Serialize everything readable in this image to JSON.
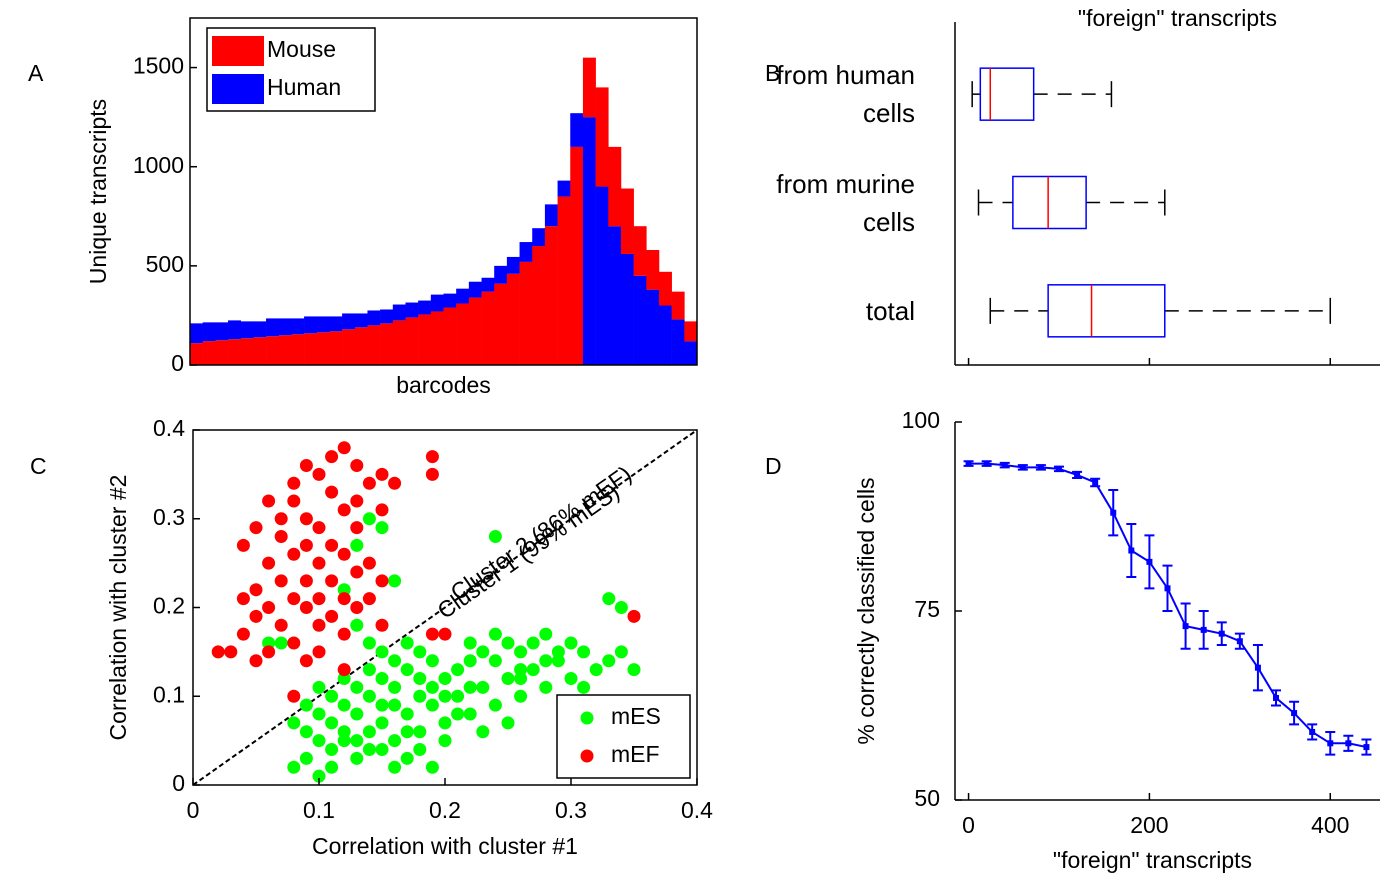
{
  "chart_data": [
    {
      "type": "bar",
      "panel_label": "A",
      "xlabel": "barcodes",
      "ylabel": "Unique transcripts",
      "categories": [
        null,
        null,
        null,
        null,
        null,
        null,
        null,
        null,
        null,
        null,
        null,
        null,
        null,
        null,
        null,
        null,
        null,
        null,
        null,
        null,
        null,
        null,
        null,
        null,
        null,
        null,
        null,
        null,
        null,
        null,
        null,
        null,
        null,
        null,
        null,
        null,
        null,
        null,
        null,
        null
      ],
      "series": [
        {
          "name": "Mouse",
          "color": "#ff0000",
          "values": [
            110,
            120,
            125,
            130,
            135,
            140,
            145,
            150,
            155,
            160,
            165,
            170,
            180,
            190,
            200,
            210,
            225,
            240,
            255,
            270,
            290,
            310,
            340,
            370,
            410,
            460,
            520,
            600,
            700,
            850,
            1100,
            300,
            500,
            400,
            330,
            250,
            200,
            170,
            140,
            100
          ]
        },
        {
          "name": "Human",
          "color": "#0000ff",
          "values": [
            100,
            95,
            90,
            95,
            85,
            80,
            90,
            85,
            80,
            85,
            80,
            75,
            80,
            70,
            75,
            70,
            80,
            75,
            70,
            85,
            70,
            75,
            80,
            70,
            90,
            85,
            100,
            90,
            110,
            80,
            170,
            1250,
            900,
            700,
            560,
            450,
            380,
            300,
            230,
            120
          ]
        }
      ],
      "ylim": [
        0,
        1750
      ],
      "yticks": [
        0,
        500,
        1000,
        1500
      ],
      "legend": "upper left",
      "frame": "box"
    },
    {
      "type": "box",
      "panel_label": "B",
      "title": "\"foreign\" transcripts",
      "categories": [
        "from human cells",
        "from murine cells",
        "total"
      ],
      "whisker_low": [
        4,
        11,
        24
      ],
      "q1": [
        13,
        49,
        88
      ],
      "median": [
        24,
        88,
        136
      ],
      "q3": [
        72,
        130,
        217
      ],
      "whisker_high": [
        158,
        217,
        400
      ],
      "box_color": "#0000ff",
      "median_color": "#ff0000",
      "xlim": [
        -15,
        455
      ],
      "xticks": [
        0,
        200,
        400
      ],
      "xtick_labels": false,
      "frame": "axes"
    },
    {
      "type": "scatter",
      "panel_label": "C",
      "xlabel": "Correlation with cluster #1",
      "ylabel": "Correlation with cluster #2",
      "series": [
        {
          "name": "mES",
          "color": "#00ff00",
          "x": [
            0.08,
            0.09,
            0.1,
            0.11,
            0.12,
            0.13,
            0.14,
            0.15,
            0.16,
            0.17,
            0.18,
            0.19,
            0.09,
            0.1,
            0.11,
            0.12,
            0.13,
            0.14,
            0.15,
            0.16,
            0.17,
            0.18,
            0.19,
            0.2,
            0.21,
            0.22,
            0.23,
            0.24,
            0.25,
            0.26,
            0.27,
            0.28,
            0.29,
            0.3,
            0.31,
            0.32,
            0.33,
            0.34,
            0.35,
            0.12,
            0.13,
            0.14,
            0.15,
            0.16,
            0.17,
            0.18,
            0.19,
            0.2,
            0.21,
            0.22,
            0.23,
            0.24,
            0.25,
            0.26,
            0.27,
            0.28,
            0.29,
            0.22,
            0.2,
            0.16,
            0.17,
            0.11,
            0.1,
            0.09,
            0.08,
            0.15,
            0.14,
            0.13,
            0.12,
            0.13,
            0.14,
            0.15,
            0.16,
            0.24,
            0.33,
            0.34,
            0.18,
            0.21,
            0.23,
            0.25,
            0.2,
            0.18,
            0.16,
            0.14,
            0.07,
            0.06,
            0.26,
            0.28,
            0.3,
            0.31,
            0.19,
            0.17,
            0.11,
            0.1,
            0.22,
            0.24,
            0.12,
            0.13,
            0.15,
            0.26
          ],
          "y": [
            0.02,
            0.03,
            0.01,
            0.04,
            0.05,
            0.03,
            0.06,
            0.04,
            0.05,
            0.03,
            0.06,
            0.02,
            0.06,
            0.08,
            0.07,
            0.09,
            0.08,
            0.1,
            0.07,
            0.09,
            0.08,
            0.1,
            0.09,
            0.07,
            0.1,
            0.08,
            0.11,
            0.09,
            0.12,
            0.1,
            0.13,
            0.11,
            0.14,
            0.12,
            0.11,
            0.13,
            0.14,
            0.15,
            0.13,
            0.12,
            0.11,
            0.13,
            0.12,
            0.11,
            0.13,
            0.12,
            0.14,
            0.12,
            0.13,
            0.14,
            0.15,
            0.14,
            0.16,
            0.15,
            0.16,
            0.17,
            0.15,
            0.11,
            0.1,
            0.14,
            0.16,
            0.1,
            0.11,
            0.09,
            0.07,
            0.15,
            0.16,
            0.18,
            0.22,
            0.27,
            0.3,
            0.29,
            0.23,
            0.28,
            0.21,
            0.2,
            0.15,
            0.08,
            0.06,
            0.07,
            0.05,
            0.04,
            0.02,
            0.04,
            0.16,
            0.16,
            0.12,
            0.14,
            0.16,
            0.15,
            0.11,
            0.06,
            0.02,
            0.05,
            0.16,
            0.17,
            0.06,
            0.05,
            0.09,
            0.13
          ]
        },
        {
          "name": "mEF",
          "color": "#ff0000",
          "x": [
            0.12,
            0.19,
            0.09,
            0.11,
            0.13,
            0.15,
            0.1,
            0.08,
            0.14,
            0.16,
            0.19,
            0.06,
            0.08,
            0.11,
            0.13,
            0.07,
            0.09,
            0.12,
            0.15,
            0.05,
            0.07,
            0.1,
            0.13,
            0.09,
            0.11,
            0.04,
            0.08,
            0.12,
            0.14,
            0.06,
            0.1,
            0.13,
            0.07,
            0.09,
            0.11,
            0.15,
            0.05,
            0.08,
            0.1,
            0.12,
            0.04,
            0.14,
            0.06,
            0.09,
            0.11,
            0.13,
            0.05,
            0.07,
            0.1,
            0.12,
            0.04,
            0.08,
            0.06,
            0.03,
            0.1,
            0.09,
            0.05,
            0.19,
            0.15,
            0.35,
            0.08,
            0.12,
            0.2,
            0.02
          ],
          "y": [
            0.38,
            0.37,
            0.36,
            0.37,
            0.36,
            0.35,
            0.35,
            0.34,
            0.34,
            0.34,
            0.35,
            0.32,
            0.32,
            0.33,
            0.32,
            0.3,
            0.3,
            0.31,
            0.31,
            0.29,
            0.28,
            0.29,
            0.29,
            0.27,
            0.27,
            0.27,
            0.26,
            0.26,
            0.25,
            0.25,
            0.25,
            0.24,
            0.23,
            0.23,
            0.23,
            0.23,
            0.22,
            0.21,
            0.21,
            0.21,
            0.21,
            0.21,
            0.2,
            0.2,
            0.19,
            0.2,
            0.19,
            0.18,
            0.18,
            0.17,
            0.17,
            0.16,
            0.15,
            0.15,
            0.15,
            0.14,
            0.14,
            0.17,
            0.18,
            0.19,
            0.1,
            0.13,
            0.17,
            0.15
          ]
        }
      ],
      "annotations": [
        "Cluster 2 (86% mEF)",
        "Cluster 1 (99% mES)"
      ],
      "diagonal": true,
      "xlim": [
        0,
        0.4
      ],
      "ylim": [
        0,
        0.4
      ],
      "xticks": [
        0,
        0.1,
        0.2,
        0.3,
        0.4
      ],
      "yticks": [
        0,
        0.1,
        0.2,
        0.3,
        0.4
      ],
      "legend": "lower right",
      "frame": "box"
    },
    {
      "type": "line",
      "panel_label": "D",
      "xlabel": "\"foreign\" transcripts",
      "ylabel": "% correctly classified cells",
      "color": "#0000ff",
      "x": [
        0,
        20,
        40,
        60,
        80,
        100,
        120,
        140,
        160,
        180,
        200,
        220,
        240,
        260,
        280,
        300,
        320,
        340,
        360,
        380,
        400,
        420,
        440
      ],
      "values": [
        94.5,
        94.5,
        94.3,
        94,
        94,
        93.8,
        93,
        92,
        88,
        83,
        81.5,
        78,
        73,
        72.5,
        72,
        71,
        67.5,
        63.5,
        61.5,
        59,
        57.5,
        57.5,
        57
      ],
      "errors": [
        0.3,
        0.3,
        0.3,
        0.3,
        0.3,
        0.3,
        0.4,
        0.5,
        3,
        3.5,
        3.5,
        3,
        3,
        2.5,
        1.5,
        1,
        3,
        1,
        1.5,
        1,
        1.5,
        1,
        1
      ],
      "xlim": [
        -15,
        455
      ],
      "ylim": [
        50,
        100
      ],
      "xticks": [
        0,
        200,
        400
      ],
      "yticks": [
        50,
        75,
        100
      ],
      "frame": "axes"
    }
  ]
}
